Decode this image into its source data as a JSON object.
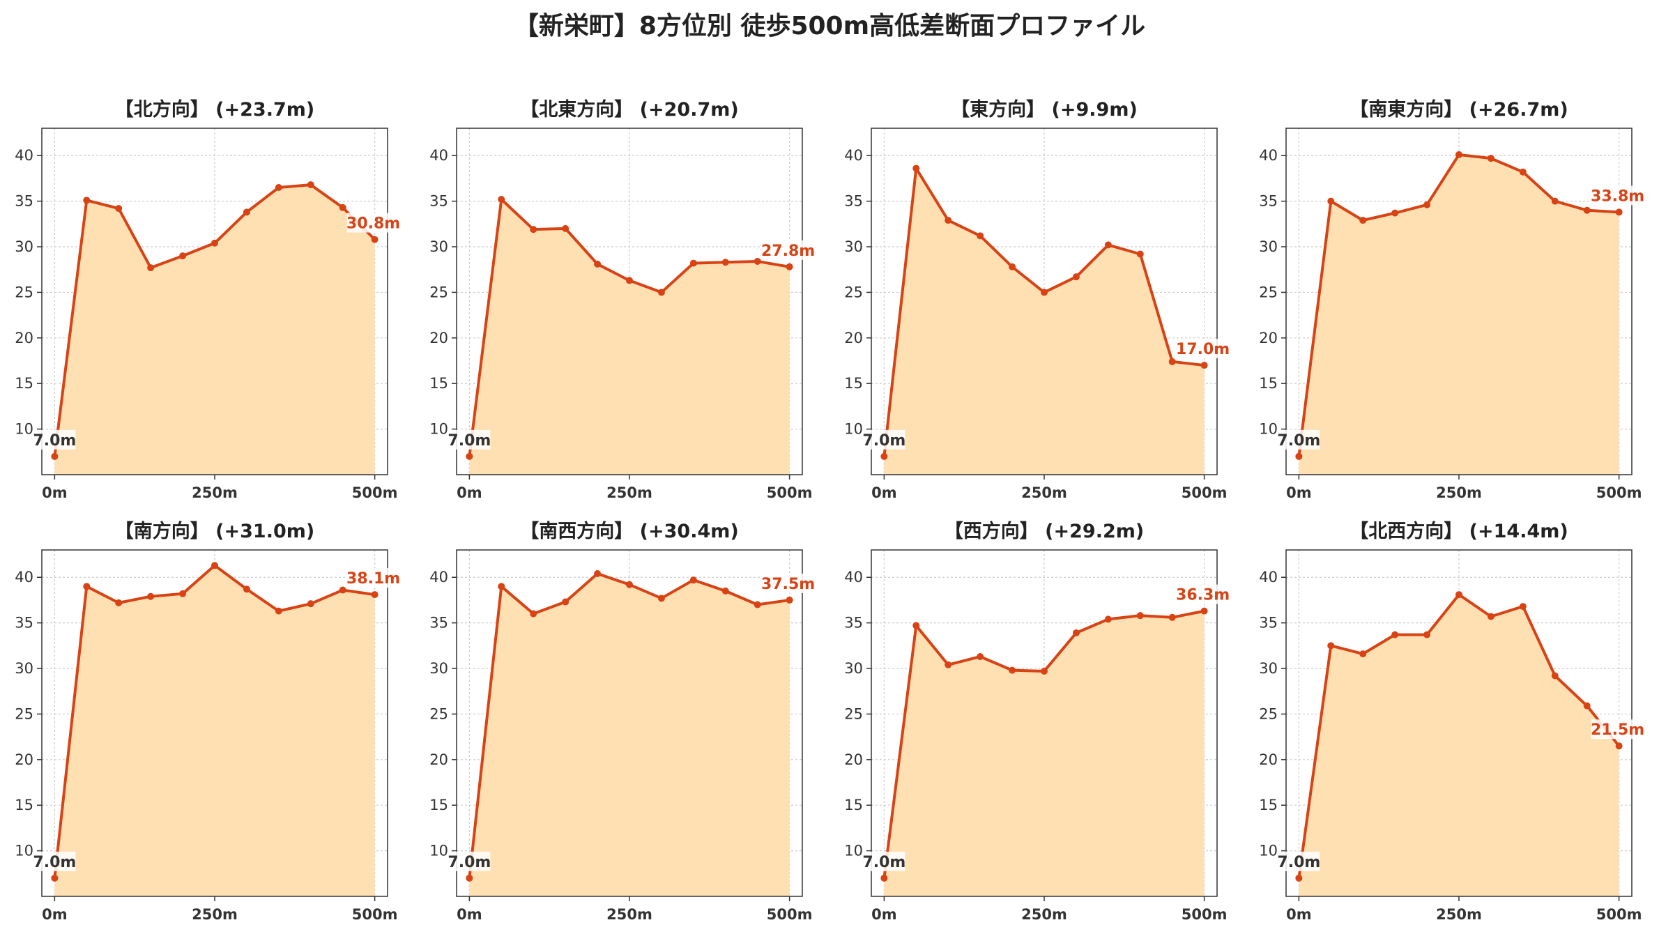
{
  "page_title": "【新栄町】8方位別 徒歩500m高低差断面プロファイル",
  "colors": {
    "line": "#d84315",
    "fill": "#ffe0b2",
    "grid": "#cccccc",
    "axis": "#333333",
    "tick_text": "#333333",
    "start_label": "#333333",
    "end_label": "#d84315"
  },
  "chart_data": [
    {
      "type": "area",
      "title": "【北方向】 (+23.7m)",
      "x": [
        0,
        50,
        100,
        150,
        200,
        250,
        300,
        350,
        400,
        450,
        500
      ],
      "values": [
        7.0,
        35.1,
        34.2,
        27.7,
        29.0,
        30.4,
        33.8,
        36.5,
        36.8,
        34.3,
        30.8
      ],
      "start_label": "7.0m",
      "end_label": "30.8m",
      "x_ticks": [
        0,
        250,
        500
      ],
      "x_tick_labels": [
        "0m",
        "250m",
        "500m"
      ],
      "y_ticks": [
        10,
        15,
        20,
        25,
        30,
        35,
        40
      ],
      "ylim": [
        5,
        43
      ],
      "xlim": [
        -20,
        520
      ],
      "grid": true
    },
    {
      "type": "area",
      "title": "【北東方向】 (+20.7m)",
      "x": [
        0,
        50,
        100,
        150,
        200,
        250,
        300,
        350,
        400,
        450,
        500
      ],
      "values": [
        7.0,
        35.2,
        31.9,
        32.0,
        28.1,
        26.3,
        25.0,
        28.2,
        28.3,
        28.4,
        27.8
      ],
      "start_label": "7.0m",
      "end_label": "27.8m",
      "x_ticks": [
        0,
        250,
        500
      ],
      "x_tick_labels": [
        "0m",
        "250m",
        "500m"
      ],
      "y_ticks": [
        10,
        15,
        20,
        25,
        30,
        35,
        40
      ],
      "ylim": [
        5,
        43
      ],
      "xlim": [
        -20,
        520
      ],
      "grid": true
    },
    {
      "type": "area",
      "title": "【東方向】 (+9.9m)",
      "x": [
        0,
        50,
        100,
        150,
        200,
        250,
        300,
        350,
        400,
        450,
        500
      ],
      "values": [
        7.0,
        38.6,
        32.9,
        31.2,
        27.8,
        25.0,
        26.7,
        30.2,
        29.2,
        17.4,
        17.0
      ],
      "start_label": "7.0m",
      "end_label": "17.0m",
      "x_ticks": [
        0,
        250,
        500
      ],
      "x_tick_labels": [
        "0m",
        "250m",
        "500m"
      ],
      "y_ticks": [
        10,
        15,
        20,
        25,
        30,
        35,
        40
      ],
      "ylim": [
        5,
        43
      ],
      "xlim": [
        -20,
        520
      ],
      "grid": true
    },
    {
      "type": "area",
      "title": "【南東方向】 (+26.7m)",
      "x": [
        0,
        50,
        100,
        150,
        200,
        250,
        300,
        350,
        400,
        450,
        500
      ],
      "values": [
        7.0,
        35.0,
        32.9,
        33.7,
        34.6,
        40.1,
        39.7,
        38.2,
        35.0,
        34.0,
        33.8
      ],
      "start_label": "7.0m",
      "end_label": "33.8m",
      "x_ticks": [
        0,
        250,
        500
      ],
      "x_tick_labels": [
        "0m",
        "250m",
        "500m"
      ],
      "y_ticks": [
        10,
        15,
        20,
        25,
        30,
        35,
        40
      ],
      "ylim": [
        5,
        43
      ],
      "xlim": [
        -20,
        520
      ],
      "grid": true
    },
    {
      "type": "area",
      "title": "【南方向】 (+31.0m)",
      "x": [
        0,
        50,
        100,
        150,
        200,
        250,
        300,
        350,
        400,
        450,
        500
      ],
      "values": [
        7.0,
        39.0,
        37.2,
        37.9,
        38.2,
        41.3,
        38.7,
        36.3,
        37.1,
        38.6,
        38.1
      ],
      "start_label": "7.0m",
      "end_label": "38.1m",
      "x_ticks": [
        0,
        250,
        500
      ],
      "x_tick_labels": [
        "0m",
        "250m",
        "500m"
      ],
      "y_ticks": [
        10,
        15,
        20,
        25,
        30,
        35,
        40
      ],
      "ylim": [
        5,
        43
      ],
      "xlim": [
        -20,
        520
      ],
      "grid": true
    },
    {
      "type": "area",
      "title": "【南西方向】 (+30.4m)",
      "x": [
        0,
        50,
        100,
        150,
        200,
        250,
        300,
        350,
        400,
        450,
        500
      ],
      "values": [
        7.0,
        39.0,
        36.0,
        37.3,
        40.4,
        39.2,
        37.7,
        39.7,
        38.5,
        37.0,
        37.5
      ],
      "start_label": "7.0m",
      "end_label": "37.5m",
      "x_ticks": [
        0,
        250,
        500
      ],
      "x_tick_labels": [
        "0m",
        "250m",
        "500m"
      ],
      "y_ticks": [
        10,
        15,
        20,
        25,
        30,
        35,
        40
      ],
      "ylim": [
        5,
        43
      ],
      "xlim": [
        -20,
        520
      ],
      "grid": true
    },
    {
      "type": "area",
      "title": "【西方向】 (+29.2m)",
      "x": [
        0,
        50,
        100,
        150,
        200,
        250,
        300,
        350,
        400,
        450,
        500
      ],
      "values": [
        7.0,
        34.7,
        30.4,
        31.3,
        29.8,
        29.7,
        33.9,
        35.4,
        35.8,
        35.6,
        36.3
      ],
      "start_label": "7.0m",
      "end_label": "36.3m",
      "x_ticks": [
        0,
        250,
        500
      ],
      "x_tick_labels": [
        "0m",
        "250m",
        "500m"
      ],
      "y_ticks": [
        10,
        15,
        20,
        25,
        30,
        35,
        40
      ],
      "ylim": [
        5,
        43
      ],
      "xlim": [
        -20,
        520
      ],
      "grid": true
    },
    {
      "type": "area",
      "title": "【北西方向】 (+14.4m)",
      "x": [
        0,
        50,
        100,
        150,
        200,
        250,
        300,
        350,
        400,
        450,
        500
      ],
      "values": [
        7.0,
        32.5,
        31.6,
        33.7,
        33.7,
        38.1,
        35.7,
        36.8,
        29.2,
        25.9,
        21.5
      ],
      "start_label": "7.0m",
      "end_label": "21.5m",
      "x_ticks": [
        0,
        250,
        500
      ],
      "x_tick_labels": [
        "0m",
        "250m",
        "500m"
      ],
      "y_ticks": [
        10,
        15,
        20,
        25,
        30,
        35,
        40
      ],
      "ylim": [
        5,
        43
      ],
      "xlim": [
        -20,
        520
      ],
      "grid": true
    }
  ]
}
